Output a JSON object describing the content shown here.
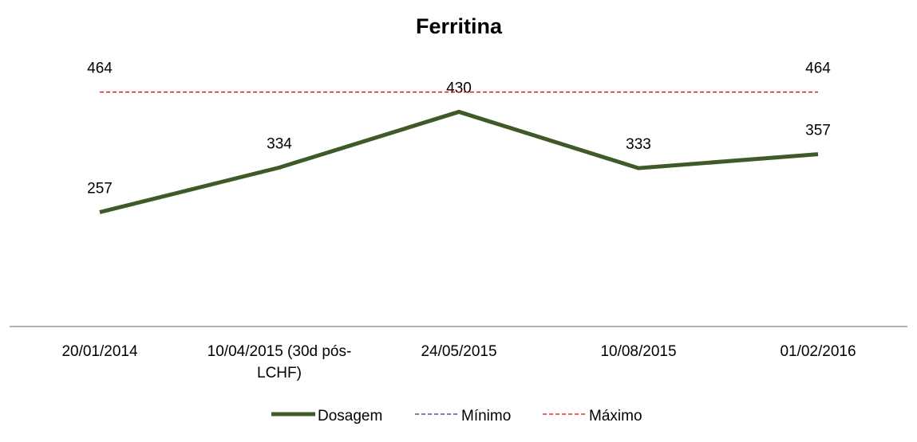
{
  "chart_data": {
    "type": "line",
    "title": "Ferritina",
    "categories": [
      "20/01/2014",
      "10/04/2015 (30d pós-LCHF)",
      "24/05/2015",
      "10/08/2015",
      "01/02/2016"
    ],
    "series": [
      {
        "name": "Dosagem",
        "color": "#3d5a27",
        "dash": false,
        "width": 5,
        "values": [
          257,
          334,
          430,
          333,
          357
        ],
        "data_labels": [
          true,
          true,
          true,
          true,
          true
        ]
      },
      {
        "name": "Mínimo",
        "color": "#1f3864",
        "dash": true,
        "width": 1.3,
        "values": [
          null,
          null,
          null,
          null,
          null
        ],
        "data_labels": [
          false,
          false,
          false,
          false,
          false
        ]
      },
      {
        "name": "Máximo",
        "color": "#e00000",
        "dash": true,
        "width": 1.3,
        "values": [
          464,
          464,
          464,
          464,
          464
        ],
        "data_labels": [
          true,
          false,
          false,
          false,
          true
        ]
      }
    ],
    "ylim": [
      60,
      480
    ]
  }
}
